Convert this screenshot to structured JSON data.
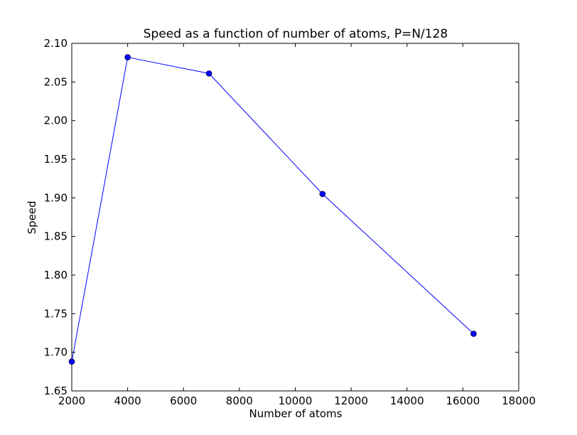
{
  "chart_data": {
    "type": "line",
    "title": "Speed as a function of number of atoms, P=N/128",
    "xlabel": "Number of atoms",
    "ylabel": "Speed",
    "xlim": [
      2000,
      18000
    ],
    "ylim": [
      1.65,
      2.1
    ],
    "xticks": [
      "2000",
      "4000",
      "6000",
      "8000",
      "10000",
      "12000",
      "14000",
      "16000",
      "18000"
    ],
    "yticks": [
      "1.65",
      "1.70",
      "1.75",
      "1.80",
      "1.85",
      "1.90",
      "1.95",
      "2.00",
      "2.05",
      "2.10"
    ],
    "grid": false,
    "series": [
      {
        "color": "#0000ff",
        "marker": "circle",
        "x": [
          2000,
          4000,
          6912,
          10976,
          16384
        ],
        "y": [
          1.688,
          2.082,
          2.061,
          1.905,
          1.724
        ]
      }
    ]
  }
}
